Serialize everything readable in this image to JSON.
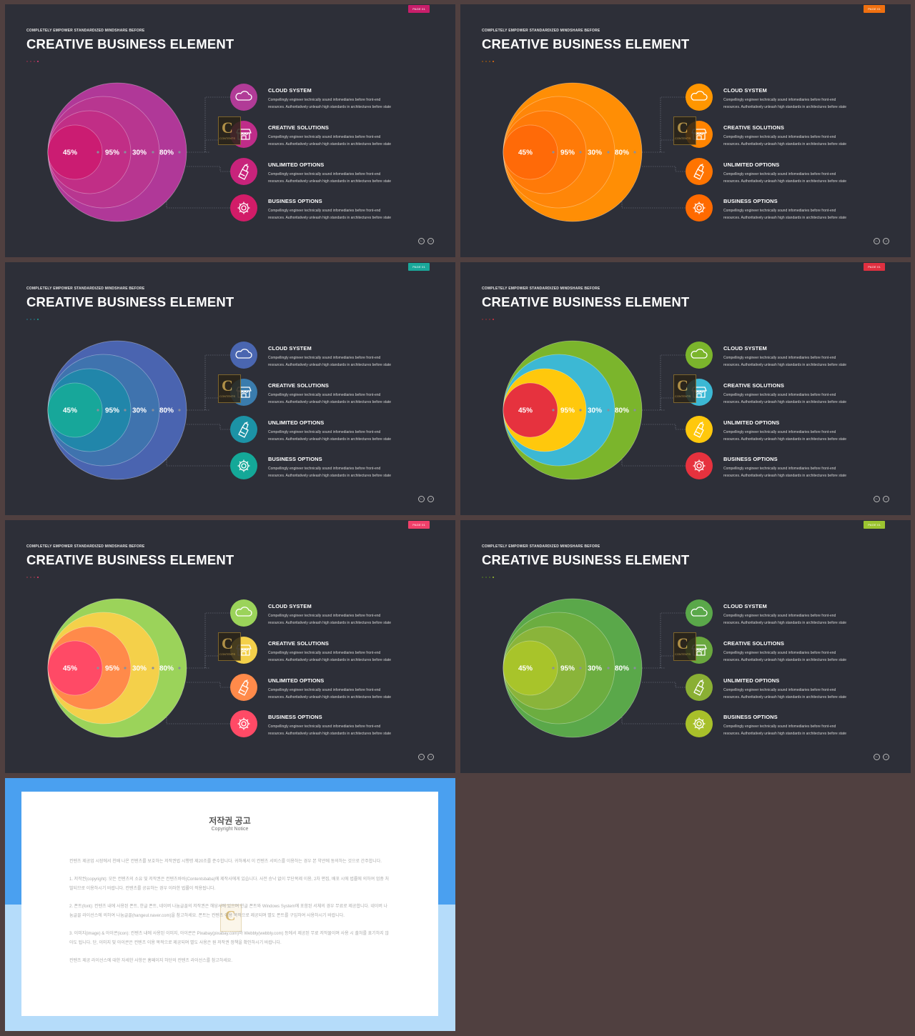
{
  "slides": [
    {
      "page_badge": "PAGE 01",
      "subtitle": "COMPLETELY  EMPOWER  STANDARDIZED  MINDSHARE  BEFORE",
      "title": "CREATIVE BUSINESS ELEMENT",
      "accent": "#c81e6a",
      "dot_colors": [
        "#7a3048",
        "#7a3048",
        "#7a3048",
        "#e83a7a"
      ],
      "circle_colors": [
        "#b03898",
        "#b83690",
        "#c12e86",
        "#cb1c72"
      ],
      "icon_colors": [
        "#b13b97",
        "#bf2c89",
        "#c8237b",
        "#d21c68"
      ],
      "percentages": [
        "45%",
        "95%",
        "30%",
        "80%"
      ]
    },
    {
      "page_badge": "PAGE 01",
      "subtitle": "COMPLETELY  EMPOWER  STANDARDIZED  MINDSHARE  BEFORE",
      "title": "CREATIVE BUSINESS ELEMENT",
      "accent": "#f07010",
      "dot_colors": [
        "#8a5018",
        "#8a5018",
        "#8a5018",
        "#f07010"
      ],
      "circle_colors": [
        "#ff8e05",
        "#ff8608",
        "#ff7a08",
        "#ff6a08"
      ],
      "icon_colors": [
        "#ff9600",
        "#ff8400",
        "#ff7400",
        "#ff6a00"
      ],
      "percentages": [
        "45%",
        "95%",
        "30%",
        "80%"
      ]
    },
    {
      "page_badge": "PAGE 01",
      "subtitle": "COMPLETELY  EMPOWER  STANDARDIZED  MINDSHARE  BEFORE",
      "title": "CREATIVE BUSINESS ELEMENT",
      "accent": "#1aa89a",
      "dot_colors": [
        "#2a6070",
        "#2a6070",
        "#2a6070",
        "#1aa89a"
      ],
      "circle_colors": [
        "#4a64b0",
        "#3f73ae",
        "#2186aa",
        "#17a79a"
      ],
      "icon_colors": [
        "#4a66b0",
        "#3a7cad",
        "#1c93a6",
        "#14a898"
      ],
      "percentages": [
        "45%",
        "95%",
        "30%",
        "80%"
      ]
    },
    {
      "page_badge": "PAGE 01",
      "subtitle": "COMPLETELY  EMPOWER  STANDARDIZED  MINDSHARE  BEFORE",
      "title": "CREATIVE BUSINESS ELEMENT",
      "accent": "#e03040",
      "dot_colors": [
        "#7a3036",
        "#7a3036",
        "#7a3036",
        "#e03040"
      ],
      "circle_colors": [
        "#7bb52c",
        "#3cb8d4",
        "#ffc80c",
        "#e6323e"
      ],
      "icon_colors": [
        "#7bb52c",
        "#3cb8d4",
        "#ffc80c",
        "#e6323e"
      ],
      "percentages": [
        "45%",
        "95%",
        "30%",
        "80%"
      ]
    },
    {
      "page_badge": "PAGE 01",
      "subtitle": "COMPLETELY  EMPOWER  STANDARDIZED  MINDSHARE  BEFORE",
      "title": "CREATIVE BUSINESS ELEMENT",
      "accent": "#f0406a",
      "dot_colors": [
        "#7a3a48",
        "#7a3a48",
        "#7a3a48",
        "#f0406a"
      ],
      "circle_colors": [
        "#9bd35a",
        "#f4d04a",
        "#ff8a4a",
        "#ff4a66"
      ],
      "icon_colors": [
        "#9bd35a",
        "#f4d04a",
        "#ff8a4a",
        "#ff4a66"
      ],
      "percentages": [
        "45%",
        "95%",
        "30%",
        "80%"
      ]
    },
    {
      "page_badge": "PAGE 01",
      "subtitle": "COMPLETELY  EMPOWER  STANDARDIZED  MINDSHARE  BEFORE",
      "title": "CREATIVE BUSINESS ELEMENT",
      "accent": "#9cc430",
      "dot_colors": [
        "#4a6a28",
        "#4a6a28",
        "#4a6a28",
        "#9cc430"
      ],
      "circle_colors": [
        "#5aa84a",
        "#6cad40",
        "#8ab43a",
        "#a8c42a"
      ],
      "icon_colors": [
        "#5aa84a",
        "#6aa83e",
        "#8aaf34",
        "#a8c02a"
      ],
      "percentages": [
        "45%",
        "95%",
        "30%",
        "80%"
      ]
    }
  ],
  "items": [
    {
      "title": "CLOUD SYSTEM",
      "icon": "cloud-icon",
      "text1": "Compellingly engineer technically sound infomediaries before front-end",
      "text2": "resources. Authoritatively unleash high standards in architectures before state"
    },
    {
      "title": "CREATIVE SOLUTIONS",
      "icon": "store-icon",
      "text1": "Compellingly engineer technically sound infomediaries before front-end",
      "text2": "resources. Authoritatively unleash high standards in architectures before state"
    },
    {
      "title": "UNLIMITED OPTIONS",
      "icon": "cleaning-icon",
      "text1": "Compellingly engineer technically sound infomediaries before front-end",
      "text2": "resources. Authoritatively unleash high standards in architectures before state"
    },
    {
      "title": "BUSINESS OPTIONS",
      "icon": "gear-icon",
      "text1": "Compellingly engineer technically sound infomediaries before front-end",
      "text2": "resources. Authoritatively unleash high standards in architectures before state"
    }
  ],
  "nav": {
    "prev": "←",
    "next": "→"
  },
  "logo_letter": "C",
  "logo_text": "CONTENTS",
  "notice": {
    "title": "저작권 공고",
    "subtitle": "Copyright Notice",
    "paragraphs": [
      "컨텐츠 제공업 시장에서 천배 나온 컨텐츠를 보호하는 저작권법 시행령 제20조를 준수합니다. 귀하께서 이 컨텐츠 서비스를 이용하는 경우 본 약관에 동의하는 것으로 간주합니다.",
      "1. 저작권(copyright): 모든 컨텐츠의 소유 및 저작권은 컨텐츠바바(Contentsbaba)에 제작사에게 있습니다. 사전 승낙 없이 무단복제 이용, 2차 편집, 배포 시에 법률에 의하여 엄중 처벌되므로 이용하시기 바랍니다. 컨텐츠를 공유하는 경우 이러한 법률이 적용됩니다.",
      "2. 폰트(font): 컨텐츠 내에 사용된 폰트, 한글 폰트, 네이버 나눔글꼴의 저작권은 해당사에 있으며 한글 폰트와 Windows System에 포함된 서체의 경우 무료로 제공합니다. 네이버 나눔글꼴 라이선스에 의하여 나눔글꼴(hangeul.naver.com)을 참고하세요. 폰트는 컨텐츠 이용 목적으로 제공되며 별도 폰트를 구입하여 사용하시기 바랍니다.",
      "3. 이미지(image) & 아이콘(icon): 컨텐츠 내에 사용된 이미지, 아이콘은 Pixabay(pixabay.com)와 Webbly(webbly.com) 등에서 제공된 무료 저작물이며 사용 시 출처를 표기하지 않아도 됩니다. 단, 이미지 및 아이콘은 컨텐츠 이용 목적으로 제공되며 별도 사용은 원 저작권 정책을 확인하시기 바랍니다.",
      "컨텐츠 제공 라이선스에 대한 자세한 사항은 홈페이지 하단의 컨텐츠 라이선스를 참고하세요."
    ]
  }
}
